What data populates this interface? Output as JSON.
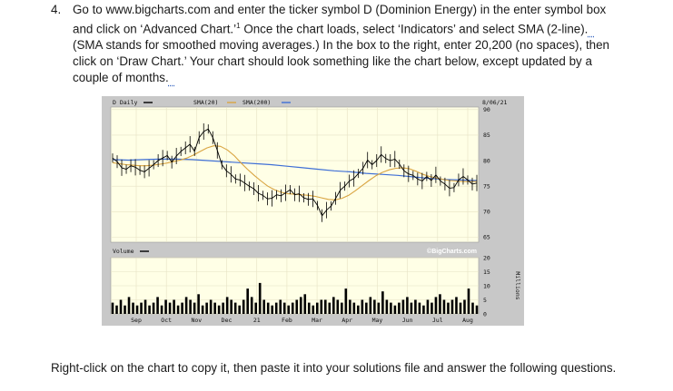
{
  "question": {
    "number": "4.",
    "text_before": "Go to www.bigcharts.com and enter the ticker symbol D (Dominion Energy) in the enter symbol box and click on ‘Advanced Chart.’",
    "footnote_mark": "1",
    "text_middle": " Once the chart loads, select ‘Indicators’ and select SMA (2-line).",
    "text_middle_2": " (SMA stands for smoothed moving averages.) In the box to the right, enter 20,200 (no spaces), then click on ‘Draw Chart.’ Your chart should look something like the chart below, except updated by a couple of months."
  },
  "footer": "Right-click on the chart to copy it, then paste it into your solutions file and answer the following questions.",
  "chart": {
    "legend_price": "D Daily",
    "legend_sma20": "SMA(20)",
    "legend_sma200": "SMA(200)",
    "date_label": "8/06/21",
    "volume_label": "Volume",
    "watermark": "©BigCharts.com",
    "volume_unit": "Millions",
    "colors": {
      "price": "#000000",
      "sma20": "#d9a441",
      "sma200": "#3f6fd6",
      "plot_bg": "#ffffe6",
      "frame": "#c8c8c8"
    }
  },
  "chart_data": {
    "type": "line",
    "price_axis": {
      "ticks": [
        65,
        70,
        75,
        80,
        85,
        90
      ],
      "ylim": [
        64,
        90.5
      ]
    },
    "volume_axis": {
      "ticks": [
        0,
        5,
        10,
        15,
        20
      ],
      "ylim": [
        0,
        20
      ]
    },
    "x_ticks": [
      "Sep",
      "Oct",
      "Nov",
      "Dec",
      "21",
      "Feb",
      "Mar",
      "Apr",
      "May",
      "Jun",
      "Jul",
      "Aug"
    ],
    "series": [
      {
        "name": "D Daily",
        "values": [
          80.5,
          79.8,
          78.6,
          78.3,
          79.0,
          78.7,
          78.1,
          77.8,
          78.5,
          79.2,
          80.0,
          80.5,
          81.0,
          79.7,
          80.9,
          81.8,
          82.5,
          83.2,
          81.8,
          84.5,
          85.7,
          86.2,
          84.5,
          82.0,
          79.2,
          78.0,
          77.3,
          76.4,
          76.2,
          75.6,
          75.0,
          74.5,
          73.6,
          73.2,
          72.5,
          72.6,
          73.3,
          73.1,
          73.7,
          74.3,
          73.3,
          73.5,
          72.7,
          72.4,
          72.5,
          71.2,
          69.2,
          70.3,
          71.1,
          72.6,
          74.2,
          75.0,
          76.0,
          76.5,
          77.5,
          78.5,
          80.1,
          79.2,
          80.0,
          81.2,
          80.4,
          80.0,
          80.3,
          79.3,
          78.0,
          77.4,
          77.1,
          76.4,
          76.0,
          76.9,
          76.1,
          77.2,
          76.0,
          75.4,
          74.6,
          74.7,
          76.2,
          76.9,
          76.2,
          75.4,
          75.6
        ]
      },
      {
        "name": "SMA(20)",
        "values": [
          79.6,
          79.4,
          79.2,
          79.1,
          79.0,
          79.0,
          79.1,
          79.3,
          79.5,
          79.8,
          80.1,
          80.5,
          81.1,
          81.8,
          82.5,
          82.9,
          82.8,
          82.1,
          81.0,
          79.6,
          78.3,
          77.1,
          76.0,
          75.0,
          74.3,
          73.8,
          73.5,
          73.4,
          73.3,
          73.2,
          73.0,
          72.7,
          72.4,
          72.3,
          72.6,
          73.2,
          74.1,
          75.1,
          76.1,
          77.0,
          77.7,
          78.2,
          78.5,
          78.6,
          78.4,
          77.9,
          77.3,
          76.9,
          76.6,
          76.3,
          76.1,
          76.0,
          75.9,
          75.9,
          75.9
        ]
      },
      {
        "name": "SMA(200)",
        "values": [
          80.2,
          80.1,
          80.2,
          80.3,
          80.3,
          80.2,
          80.0,
          79.8,
          79.6,
          79.4,
          79.2,
          78.9,
          78.6,
          78.3,
          78.0,
          77.8,
          77.5,
          77.3,
          77.1,
          76.8,
          76.5,
          76.3,
          76.2,
          76.1
        ]
      }
    ],
    "volume": [
      4,
      3,
      5,
      3,
      6,
      4,
      3,
      4,
      5,
      3,
      4,
      6,
      3,
      5,
      4,
      5,
      3,
      4,
      6,
      5,
      4,
      7,
      3,
      4,
      5,
      4,
      3,
      4,
      6,
      5,
      4,
      3,
      5,
      9,
      6,
      4,
      11,
      5,
      4,
      3,
      4,
      5,
      4,
      3,
      4,
      5,
      6,
      7,
      4,
      3,
      4,
      5,
      5,
      4,
      6,
      5,
      4,
      9,
      5,
      4,
      3,
      5,
      4,
      6,
      5,
      4,
      8,
      5,
      4,
      3,
      4,
      5,
      6,
      4,
      5,
      4,
      3,
      5,
      4,
      6,
      7,
      5,
      4,
      5,
      6,
      4,
      5,
      9,
      4,
      3
    ]
  }
}
